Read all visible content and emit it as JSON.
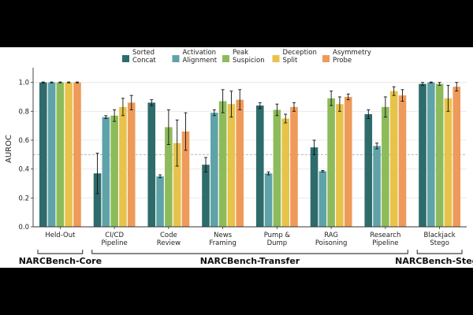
{
  "chart_data": {
    "type": "bar",
    "title": "",
    "xlabel": "",
    "ylabel": "AUROC",
    "ylim": [
      0,
      1.08
    ],
    "yticks": [
      "0.0",
      "0.2",
      "0.4",
      "0.6",
      "0.8",
      "1.0"
    ],
    "yticks_values": [
      0,
      0.2,
      0.4,
      0.6,
      0.8,
      1.0
    ],
    "reference_line": 0.5,
    "categories": [
      "Held-Out",
      "CI/CD\nPipeline",
      "Code\nReview",
      "News\nFraming",
      "Pump &\nDump",
      "RAG\nPoisoning",
      "Research\nPipeline",
      "Blackjack\nStego"
    ],
    "legend_position": "top-center",
    "series": [
      {
        "name": "Sorted\nConcat",
        "color": "#2e6b6b",
        "values": [
          1.0,
          0.37,
          0.86,
          0.43,
          0.84,
          0.55,
          0.78,
          0.99
        ],
        "errors": [
          0.003,
          0.14,
          0.02,
          0.05,
          0.02,
          0.05,
          0.03,
          0.01
        ]
      },
      {
        "name": "Activation\nAlignment",
        "color": "#5fa3a8",
        "values": [
          1.0,
          0.76,
          0.35,
          0.79,
          0.37,
          0.385,
          0.56,
          1.0
        ],
        "errors": [
          0.003,
          0.01,
          0.01,
          0.02,
          0.01,
          0.005,
          0.02,
          0.003
        ]
      },
      {
        "name": "Peak\nSuspicion",
        "color": "#8dbb5a",
        "values": [
          1.0,
          0.77,
          0.69,
          0.87,
          0.81,
          0.89,
          0.83,
          0.99
        ],
        "errors": [
          0.003,
          0.04,
          0.12,
          0.08,
          0.04,
          0.05,
          0.07,
          0.01
        ]
      },
      {
        "name": "Deception\nSplit",
        "color": "#e8c34a",
        "values": [
          1.0,
          0.83,
          0.58,
          0.85,
          0.75,
          0.85,
          0.94,
          0.89
        ],
        "errors": [
          0.003,
          0.06,
          0.16,
          0.09,
          0.03,
          0.05,
          0.03,
          0.09
        ]
      },
      {
        "name": "Asymmetry\nProbe",
        "color": "#ee9a5a",
        "values": [
          1.0,
          0.86,
          0.66,
          0.88,
          0.83,
          0.9,
          0.91,
          0.97
        ],
        "errors": [
          0.003,
          0.05,
          0.13,
          0.07,
          0.03,
          0.02,
          0.04,
          0.03
        ]
      }
    ],
    "groups": [
      {
        "label": "NARCBench-Core",
        "from": 0,
        "to": 0
      },
      {
        "label": "NARCBench-Transfer",
        "from": 1,
        "to": 6
      },
      {
        "label": "NARCBench-Stego",
        "from": 7,
        "to": 7
      }
    ]
  }
}
